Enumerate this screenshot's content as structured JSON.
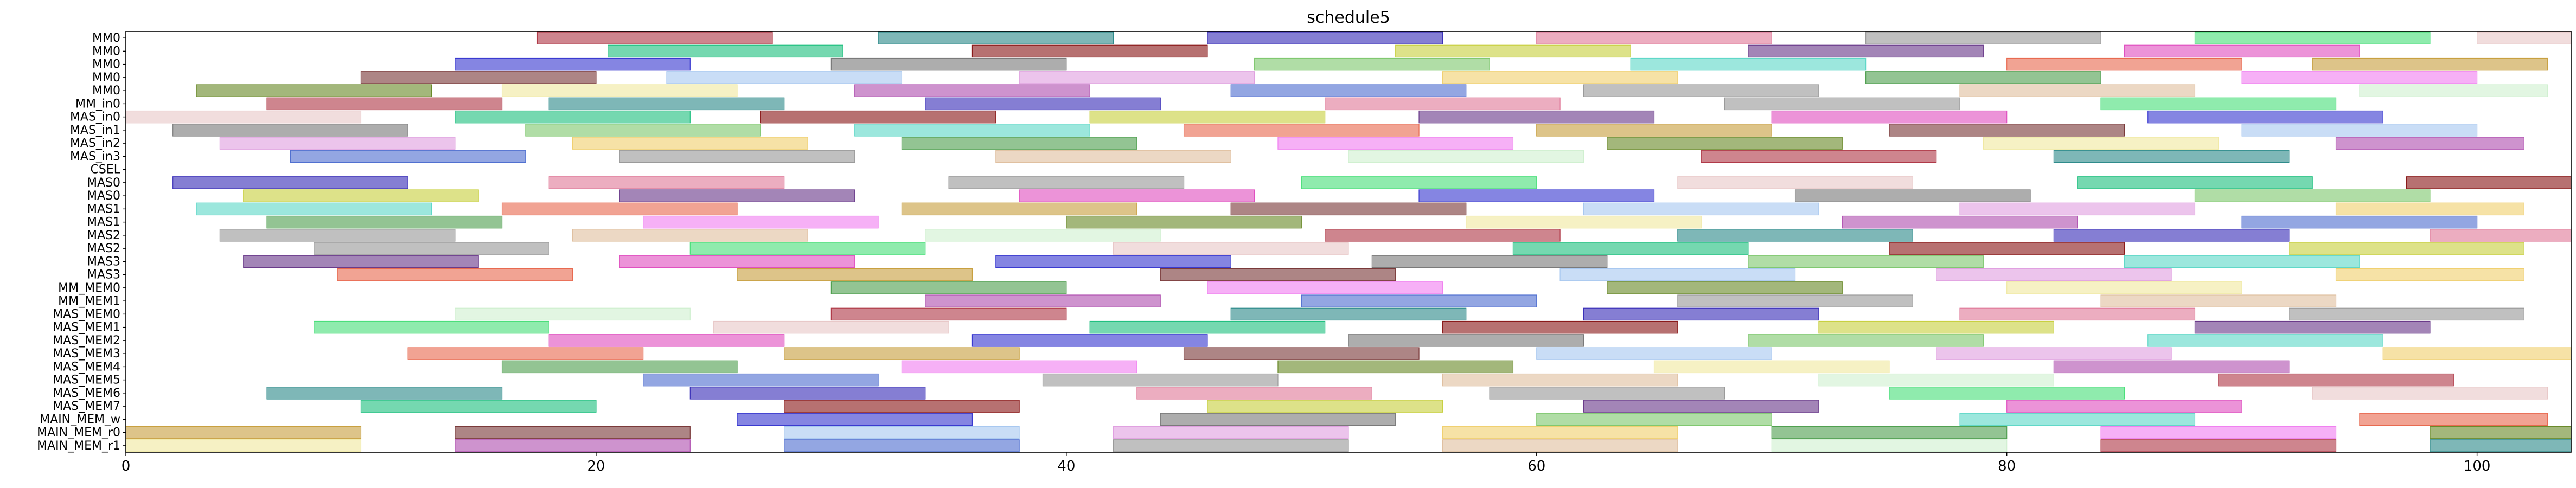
{
  "chart_data": {
    "type": "gantt",
    "title": "schedule5",
    "xlabel": "",
    "ylabel": "",
    "xlim": [
      0,
      104
    ],
    "x_ticks": [
      0,
      20,
      40,
      60,
      80,
      100
    ],
    "grid": false,
    "legend": "none",
    "rows": [
      "MM0",
      "MM0",
      "MM0",
      "MM0",
      "MM0",
      "MM_in0",
      "MAS_in0",
      "MAS_in1",
      "MAS_in2",
      "MAS_in3",
      "CSEL",
      "MAS0",
      "MAS0",
      "MAS1",
      "MAS1",
      "MAS2",
      "MAS2",
      "MAS3",
      "MAS3",
      "MM_MEM0",
      "MM_MEM1",
      "MAS_MEM0",
      "MAS_MEM1",
      "MAS_MEM2",
      "MAS_MEM3",
      "MAS_MEM4",
      "MAS_MEM5",
      "MAS_MEM6",
      "MAS_MEM7",
      "MAIN_MEM_w",
      "MAIN_MEM_r0",
      "MAIN_MEM_r1"
    ],
    "palette": [
      "#b03a48",
      "#2e8b8b",
      "#3a2fb8",
      "#e07a9a",
      "#9a9a9a",
      "#4adf7a",
      "#e8c8c8",
      "#20c080",
      "#8a1a1a",
      "#c8d040",
      "#6a3a8a",
      "#e050c0",
      "#3a3ad0",
      "#7a7a7a",
      "#80c870",
      "#60d8c8",
      "#e86a50",
      "#c8a040",
      "#7a3a3a",
      "#a8c8f0",
      "#e0a0e0",
      "#f0d070",
      "#50a050",
      "#f080f0",
      "#6a8a2a",
      "#f0e8a0",
      "#b050b0",
      "#5070d0",
      "#9a9a9a",
      "#e0c0a0",
      "#d0f0d0"
    ],
    "bars": [
      [
        0,
        17.5,
        10,
        0
      ],
      [
        0,
        32,
        10,
        1
      ],
      [
        0,
        46,
        10,
        2
      ],
      [
        0,
        60,
        10,
        3
      ],
      [
        0,
        74,
        10,
        4
      ],
      [
        0,
        88,
        10,
        5
      ],
      [
        0,
        100,
        8,
        6
      ],
      [
        1,
        20.5,
        10,
        7
      ],
      [
        1,
        36,
        10,
        8
      ],
      [
        1,
        54,
        10,
        9
      ],
      [
        1,
        69,
        10,
        10
      ],
      [
        1,
        85,
        10,
        11
      ],
      [
        2,
        14,
        10,
        12
      ],
      [
        2,
        30,
        10,
        13
      ],
      [
        2,
        48,
        10,
        14
      ],
      [
        2,
        64,
        10,
        15
      ],
      [
        2,
        80,
        10,
        16
      ],
      [
        2,
        93,
        10,
        17
      ],
      [
        3,
        10,
        10,
        18
      ],
      [
        3,
        23,
        10,
        19
      ],
      [
        3,
        38,
        10,
        20
      ],
      [
        3,
        56,
        10,
        21
      ],
      [
        3,
        74,
        10,
        22
      ],
      [
        3,
        90,
        10,
        23
      ],
      [
        4,
        3,
        10,
        24
      ],
      [
        4,
        16,
        10,
        25
      ],
      [
        4,
        31,
        10,
        26
      ],
      [
        4,
        47,
        10,
        27
      ],
      [
        4,
        62,
        10,
        28
      ],
      [
        4,
        78,
        10,
        29
      ],
      [
        4,
        95,
        8,
        30
      ],
      [
        5,
        6,
        10,
        0
      ],
      [
        5,
        18,
        10,
        1
      ],
      [
        5,
        34,
        10,
        2
      ],
      [
        5,
        51,
        10,
        3
      ],
      [
        5,
        68,
        10,
        4
      ],
      [
        5,
        84,
        10,
        5
      ],
      [
        6,
        0,
        10,
        6
      ],
      [
        6,
        14,
        10,
        7
      ],
      [
        6,
        27,
        10,
        8
      ],
      [
        6,
        41,
        10,
        9
      ],
      [
        6,
        55,
        10,
        10
      ],
      [
        6,
        70,
        10,
        11
      ],
      [
        6,
        86,
        10,
        12
      ],
      [
        7,
        2,
        10,
        13
      ],
      [
        7,
        17,
        10,
        14
      ],
      [
        7,
        31,
        10,
        15
      ],
      [
        7,
        45,
        10,
        16
      ],
      [
        7,
        60,
        10,
        17
      ],
      [
        7,
        75,
        10,
        18
      ],
      [
        7,
        90,
        10,
        19
      ],
      [
        8,
        4,
        10,
        20
      ],
      [
        8,
        19,
        10,
        21
      ],
      [
        8,
        33,
        10,
        22
      ],
      [
        8,
        49,
        10,
        23
      ],
      [
        8,
        63,
        10,
        24
      ],
      [
        8,
        79,
        10,
        25
      ],
      [
        8,
        94,
        8,
        26
      ],
      [
        9,
        7,
        10,
        27
      ],
      [
        9,
        21,
        10,
        28
      ],
      [
        9,
        37,
        10,
        29
      ],
      [
        9,
        52,
        10,
        30
      ],
      [
        9,
        67,
        10,
        0
      ],
      [
        9,
        82,
        10,
        1
      ],
      [
        11,
        2,
        10,
        2
      ],
      [
        11,
        18,
        10,
        3
      ],
      [
        11,
        35,
        10,
        4
      ],
      [
        11,
        50,
        10,
        5
      ],
      [
        11,
        66,
        10,
        6
      ],
      [
        11,
        83,
        10,
        7
      ],
      [
        11,
        97,
        7,
        8
      ],
      [
        12,
        5,
        10,
        9
      ],
      [
        12,
        21,
        10,
        10
      ],
      [
        12,
        38,
        10,
        11
      ],
      [
        12,
        55,
        10,
        12
      ],
      [
        12,
        71,
        10,
        13
      ],
      [
        12,
        88,
        10,
        14
      ],
      [
        13,
        3,
        10,
        15
      ],
      [
        13,
        16,
        10,
        16
      ],
      [
        13,
        33,
        10,
        17
      ],
      [
        13,
        47,
        10,
        18
      ],
      [
        13,
        62,
        10,
        19
      ],
      [
        13,
        78,
        10,
        20
      ],
      [
        13,
        94,
        8,
        21
      ],
      [
        14,
        6,
        10,
        22
      ],
      [
        14,
        22,
        10,
        23
      ],
      [
        14,
        40,
        10,
        24
      ],
      [
        14,
        57,
        10,
        25
      ],
      [
        14,
        73,
        10,
        26
      ],
      [
        14,
        90,
        10,
        27
      ],
      [
        15,
        4,
        10,
        28
      ],
      [
        15,
        19,
        10,
        29
      ],
      [
        15,
        34,
        10,
        30
      ],
      [
        15,
        51,
        10,
        0
      ],
      [
        15,
        66,
        10,
        1
      ],
      [
        15,
        82,
        10,
        2
      ],
      [
        15,
        98,
        6,
        3
      ],
      [
        16,
        8,
        10,
        4
      ],
      [
        16,
        24,
        10,
        5
      ],
      [
        16,
        42,
        10,
        6
      ],
      [
        16,
        59,
        10,
        7
      ],
      [
        16,
        75,
        10,
        8
      ],
      [
        16,
        92,
        10,
        9
      ],
      [
        17,
        5,
        10,
        10
      ],
      [
        17,
        21,
        10,
        11
      ],
      [
        17,
        37,
        10,
        12
      ],
      [
        17,
        53,
        10,
        13
      ],
      [
        17,
        69,
        10,
        14
      ],
      [
        17,
        85,
        10,
        15
      ],
      [
        18,
        9,
        10,
        16
      ],
      [
        18,
        26,
        10,
        17
      ],
      [
        18,
        44,
        10,
        18
      ],
      [
        18,
        61,
        10,
        19
      ],
      [
        18,
        77,
        10,
        20
      ],
      [
        18,
        94,
        8,
        21
      ],
      [
        19,
        30,
        10,
        22
      ],
      [
        19,
        46,
        10,
        23
      ],
      [
        19,
        63,
        10,
        24
      ],
      [
        19,
        80,
        10,
        25
      ],
      [
        20,
        34,
        10,
        26
      ],
      [
        20,
        50,
        10,
        27
      ],
      [
        20,
        66,
        10,
        28
      ],
      [
        20,
        84,
        10,
        29
      ],
      [
        21,
        14,
        10,
        30
      ],
      [
        21,
        30,
        10,
        0
      ],
      [
        21,
        47,
        10,
        1
      ],
      [
        21,
        62,
        10,
        2
      ],
      [
        21,
        78,
        10,
        3
      ],
      [
        21,
        92,
        10,
        4
      ],
      [
        22,
        8,
        10,
        5
      ],
      [
        22,
        25,
        10,
        6
      ],
      [
        22,
        41,
        10,
        7
      ],
      [
        22,
        56,
        10,
        8
      ],
      [
        22,
        72,
        10,
        9
      ],
      [
        22,
        88,
        10,
        10
      ],
      [
        23,
        18,
        10,
        11
      ],
      [
        23,
        36,
        10,
        12
      ],
      [
        23,
        52,
        10,
        13
      ],
      [
        23,
        69,
        10,
        14
      ],
      [
        23,
        86,
        10,
        15
      ],
      [
        24,
        12,
        10,
        16
      ],
      [
        24,
        28,
        10,
        17
      ],
      [
        24,
        45,
        10,
        18
      ],
      [
        24,
        60,
        10,
        19
      ],
      [
        24,
        77,
        10,
        20
      ],
      [
        24,
        96,
        8,
        21
      ],
      [
        25,
        16,
        10,
        22
      ],
      [
        25,
        33,
        10,
        23
      ],
      [
        25,
        49,
        10,
        24
      ],
      [
        25,
        65,
        10,
        25
      ],
      [
        25,
        82,
        10,
        26
      ],
      [
        26,
        22,
        10,
        27
      ],
      [
        26,
        39,
        10,
        28
      ],
      [
        26,
        56,
        10,
        29
      ],
      [
        26,
        72,
        10,
        30
      ],
      [
        26,
        89,
        10,
        0
      ],
      [
        27,
        6,
        10,
        1
      ],
      [
        27,
        24,
        10,
        2
      ],
      [
        27,
        43,
        10,
        3
      ],
      [
        27,
        58,
        10,
        4
      ],
      [
        27,
        75,
        10,
        5
      ],
      [
        27,
        93,
        10,
        6
      ],
      [
        28,
        10,
        10,
        7
      ],
      [
        28,
        28,
        10,
        8
      ],
      [
        28,
        46,
        10,
        9
      ],
      [
        28,
        62,
        10,
        10
      ],
      [
        28,
        80,
        10,
        11
      ],
      [
        29,
        26,
        10,
        12
      ],
      [
        29,
        44,
        10,
        13
      ],
      [
        29,
        60,
        10,
        14
      ],
      [
        29,
        78,
        10,
        15
      ],
      [
        29,
        95,
        8,
        16
      ],
      [
        30,
        0,
        10,
        17
      ],
      [
        30,
        14,
        10,
        18
      ],
      [
        30,
        28,
        10,
        19
      ],
      [
        30,
        42,
        10,
        20
      ],
      [
        30,
        56,
        10,
        21
      ],
      [
        30,
        70,
        10,
        22
      ],
      [
        30,
        84,
        10,
        23
      ],
      [
        30,
        98,
        6,
        24
      ],
      [
        31,
        0,
        10,
        25
      ],
      [
        31,
        14,
        10,
        26
      ],
      [
        31,
        28,
        10,
        27
      ],
      [
        31,
        42,
        10,
        28
      ],
      [
        31,
        56,
        10,
        29
      ],
      [
        31,
        70,
        10,
        30
      ],
      [
        31,
        84,
        10,
        0
      ],
      [
        31,
        98,
        6,
        1
      ]
    ]
  }
}
